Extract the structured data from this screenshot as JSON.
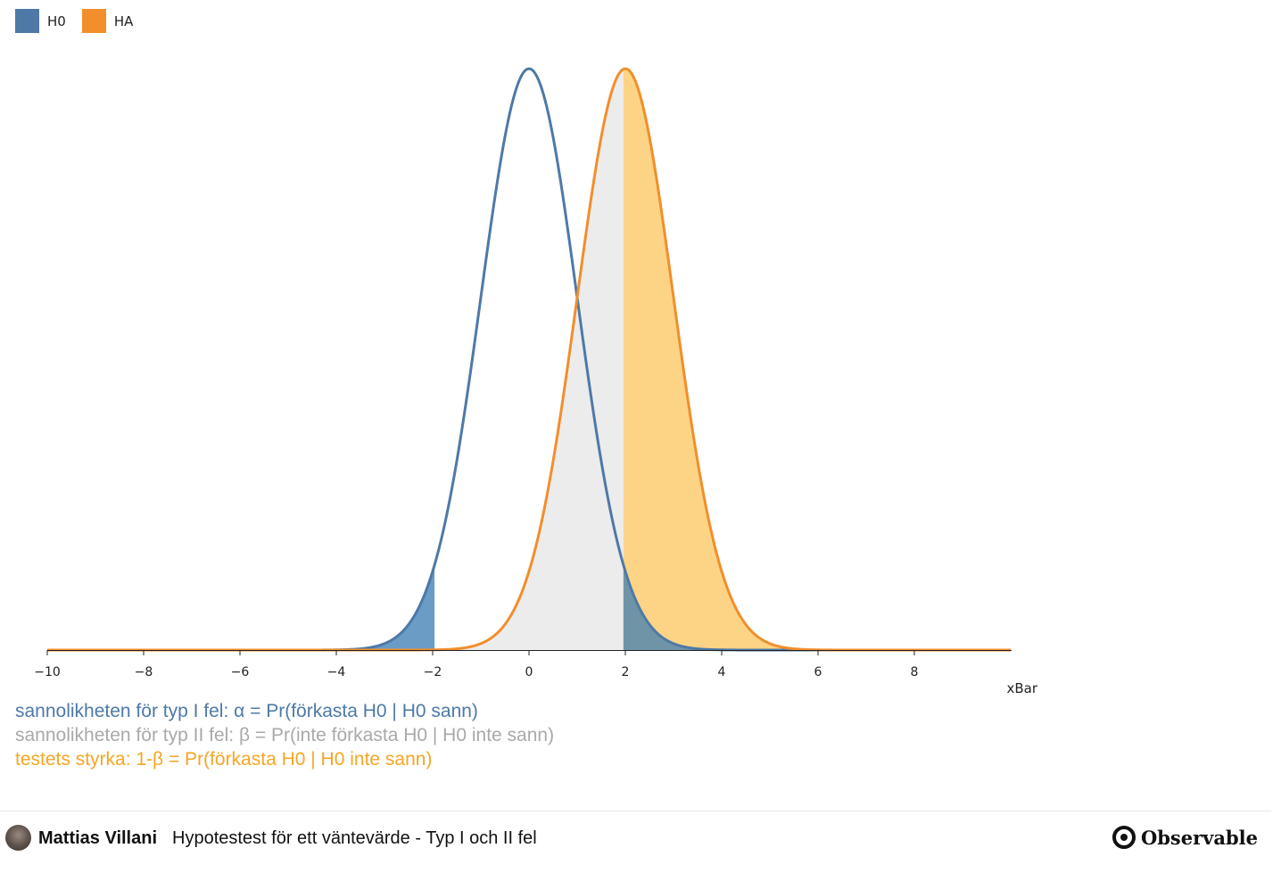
{
  "legend": [
    {
      "label": "H0",
      "color": "#4e79a7"
    },
    {
      "label": "HA",
      "color": "#f28e2b"
    }
  ],
  "chart_data": {
    "type": "area",
    "series": [
      {
        "name": "H0",
        "mean": 0,
        "sd": 1,
        "color": "#4e79a7"
      },
      {
        "name": "HA",
        "mean": 2,
        "sd": 1,
        "color": "#f28e2b"
      }
    ],
    "critical_values": [
      -1.96,
      1.96
    ],
    "xlabel": "xBar",
    "xlim": [
      -10,
      10
    ],
    "x_ticks": [
      -10,
      -8,
      -6,
      -4,
      -2,
      0,
      2,
      4,
      6,
      8
    ],
    "x_tick_labels": [
      "−10",
      "−8",
      "−6",
      "−4",
      "−2",
      "0",
      "2",
      "4",
      "6",
      "8"
    ],
    "fills": {
      "type_i_error": "#6a9cc6",
      "type_ii_error": "#ececec",
      "power": "#fdd485",
      "overlap": "#6f94a8"
    }
  },
  "notes": [
    {
      "text": "sannolikheten för typ I fel: α = Pr(förkasta H0 | H0 sann)",
      "color": "#4e79a7"
    },
    {
      "text": "sannolikheten för typ II fel: β = Pr(inte förkasta H0 | H0 inte sann)",
      "color": "#a9a9a9"
    },
    {
      "text": "testets styrka: 1-β = Pr(förkasta H0 | H0 inte sann)",
      "color": "#f5a623"
    }
  ],
  "footer": {
    "author": "Mattias Villani",
    "title": "Hypotestest för ett väntevärde - Typ I och II fel",
    "brand": "Observable",
    "avatar_icon": "user-avatar-icon",
    "brand_icon": "observable-logo-icon"
  }
}
